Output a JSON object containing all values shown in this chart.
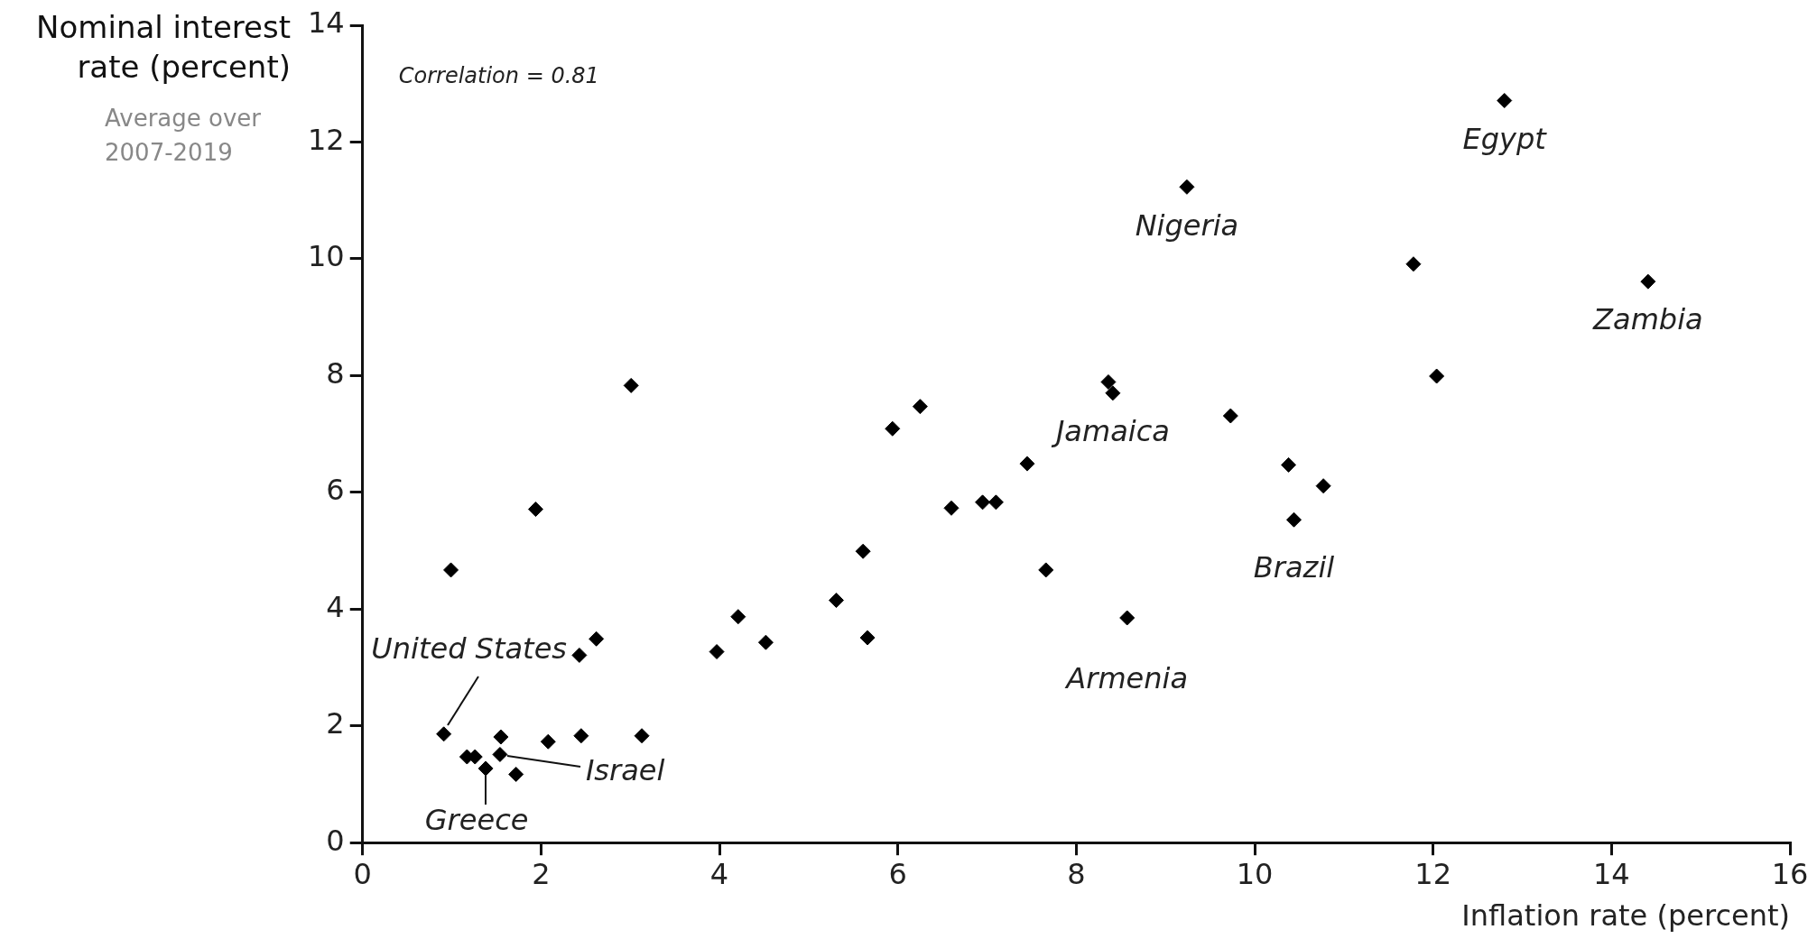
{
  "chart_data": {
    "type": "scatter",
    "ylabel": "Nominal interest rate (percent)",
    "subtitle": "Average over 2007-2019",
    "xlabel": "Inflation rate (percent)",
    "x": [
      0.91,
      0.99,
      1.17,
      1.26,
      1.38,
      1.54,
      1.55,
      1.72,
      1.94,
      2.08,
      2.43,
      2.45,
      2.62,
      3.01,
      3.13,
      3.97,
      4.21,
      4.52,
      5.31,
      5.61,
      5.66,
      5.94,
      6.25,
      6.6,
      6.95,
      7.1,
      7.45,
      7.66,
      8.36,
      8.41,
      8.57,
      9.24,
      9.73,
      10.38,
      10.44,
      10.77,
      11.78,
      12.04,
      12.8,
      14.41
    ],
    "values": [
      1.86,
      4.67,
      1.47,
      1.47,
      1.27,
      1.51,
      1.81,
      1.17,
      5.71,
      1.73,
      3.21,
      1.83,
      3.49,
      7.83,
      1.83,
      3.27,
      3.87,
      3.43,
      4.15,
      4.99,
      3.51,
      7.09,
      7.47,
      5.73,
      5.83,
      5.83,
      6.49,
      4.67,
      7.89,
      7.7,
      3.85,
      11.23,
      7.31,
      6.47,
      5.53,
      6.11,
      9.91,
      7.99,
      12.71,
      9.61
    ],
    "color": "#000000",
    "marker": "diamond",
    "xlim": [
      0,
      16
    ],
    "xticks": [
      0,
      2,
      4,
      6,
      8,
      10,
      12,
      14,
      16
    ],
    "ylim": [
      0,
      14
    ],
    "yticks": [
      0,
      2,
      4,
      6,
      8,
      10,
      12,
      14
    ],
    "annotations": [
      "Correlation = 0.81",
      {
        "text": "United States",
        "x": 0.91,
        "y": 1.86
      },
      {
        "text": "Greece",
        "x": 1.38,
        "y": 1.27
      },
      {
        "text": "Israel",
        "x": 1.54,
        "y": 1.51
      },
      {
        "text": "Jamaica",
        "x": 8.41,
        "y": 7.7
      },
      {
        "text": "Armenia",
        "x": 8.57,
        "y": 3.85
      },
      {
        "text": "Nigeria",
        "x": 9.24,
        "y": 11.23
      },
      {
        "text": "Brazil",
        "x": 10.44,
        "y": 5.53
      },
      {
        "text": "Egypt",
        "x": 12.8,
        "y": 12.71
      },
      {
        "text": "Zambia",
        "x": 14.41,
        "y": 9.61
      }
    ]
  }
}
